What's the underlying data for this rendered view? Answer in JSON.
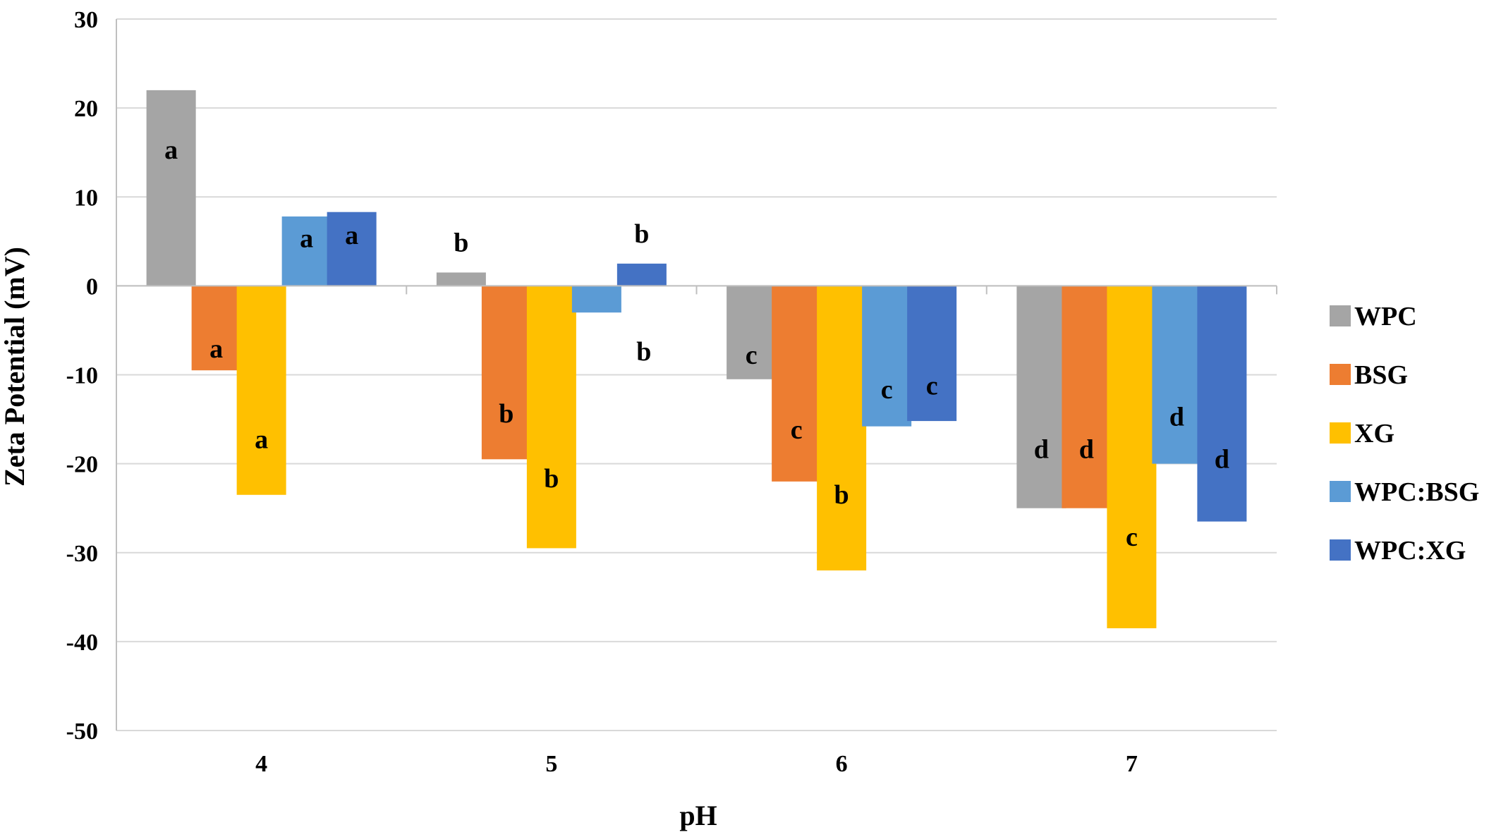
{
  "colors": {
    "WPC": "#a5a5a5",
    "BSG": "#ed7d31",
    "XG": "#ffc000",
    "WPC:BSG": "#5b9bd5",
    "WPC:XG": "#4472c4",
    "grid": "#d9d9d9",
    "axis": "#bfbfbf"
  },
  "chart_data": {
    "type": "bar",
    "title": "",
    "xlabel": "pH",
    "ylabel": "Zeta Potential (mV)",
    "categories": [
      "4",
      "5",
      "6",
      "7"
    ],
    "ylim": [
      -50,
      30
    ],
    "yticks": [
      30,
      20,
      10,
      0,
      -10,
      -20,
      -30,
      -40,
      -50
    ],
    "grid": true,
    "legend_position": "right",
    "series": [
      {
        "name": "WPC",
        "values": [
          22,
          1.5,
          -10.5,
          -25
        ],
        "letters": [
          "a",
          "b",
          "c",
          "d"
        ]
      },
      {
        "name": "BSG",
        "values": [
          -9.5,
          -19.5,
          -22,
          -25
        ],
        "letters": [
          "a",
          "b",
          "c",
          "d"
        ]
      },
      {
        "name": "XG",
        "values": [
          -23.5,
          -29.5,
          -32,
          -38.5
        ],
        "letters": [
          "a",
          "b",
          "b",
          "c"
        ]
      },
      {
        "name": "WPC:BSG",
        "values": [
          7.8,
          -3,
          -15.8,
          -20
        ],
        "letters": [
          "a",
          "b",
          "c",
          "d"
        ]
      },
      {
        "name": "WPC:XG",
        "values": [
          8.3,
          2.5,
          -15.2,
          -26.5
        ],
        "letters": [
          "a",
          "b",
          "c",
          "d"
        ]
      }
    ]
  }
}
